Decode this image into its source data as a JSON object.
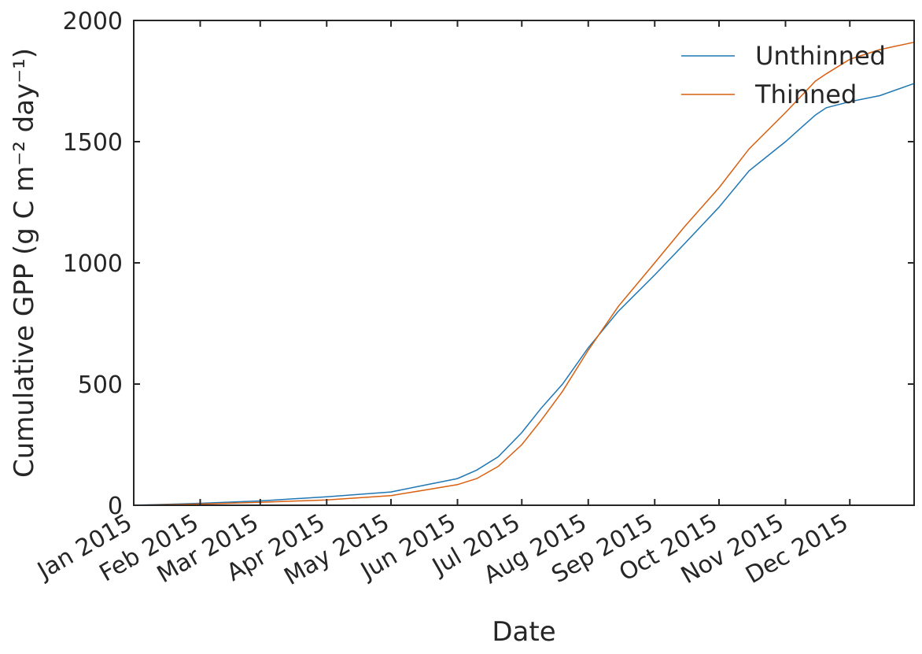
{
  "chart_data": {
    "type": "line",
    "title": "",
    "xlabel": "Date",
    "ylabel": "Cumulative GPP (g C m⁻² day⁻¹)",
    "ylim": [
      0,
      2000
    ],
    "xlim": [
      "2015-01-01",
      "2015-12-31"
    ],
    "y_ticks": [
      "0",
      "500",
      "1000",
      "1500",
      "2000"
    ],
    "x_ticks": [
      {
        "date": "2015-01-01",
        "label": "Jan 2015"
      },
      {
        "date": "2015-02-01",
        "label": "Feb 2015"
      },
      {
        "date": "2015-03-01",
        "label": "Mar 2015"
      },
      {
        "date": "2015-04-01",
        "label": "Apr 2015"
      },
      {
        "date": "2015-05-01",
        "label": "May 2015"
      },
      {
        "date": "2015-06-01",
        "label": "Jun 2015"
      },
      {
        "date": "2015-07-01",
        "label": "Jul 2015"
      },
      {
        "date": "2015-08-01",
        "label": "Aug 2015"
      },
      {
        "date": "2015-09-01",
        "label": "Sep 2015"
      },
      {
        "date": "2015-10-01",
        "label": "Oct 2015"
      },
      {
        "date": "2015-11-01",
        "label": "Nov 2015"
      },
      {
        "date": "2015-12-01",
        "label": "Dec 2015"
      }
    ],
    "grid": false,
    "legend_position": "top-right",
    "series": [
      {
        "name": "Unthinned",
        "color": "#1f77b4",
        "points": [
          [
            "2015-01-01",
            0
          ],
          [
            "2015-02-01",
            8
          ],
          [
            "2015-03-01",
            18
          ],
          [
            "2015-04-01",
            35
          ],
          [
            "2015-05-01",
            55
          ],
          [
            "2015-05-15",
            80
          ],
          [
            "2015-06-01",
            110
          ],
          [
            "2015-06-10",
            145
          ],
          [
            "2015-06-20",
            200
          ],
          [
            "2015-07-01",
            300
          ],
          [
            "2015-07-10",
            400
          ],
          [
            "2015-07-20",
            500
          ],
          [
            "2015-08-01",
            650
          ],
          [
            "2015-08-15",
            800
          ],
          [
            "2015-09-01",
            950
          ],
          [
            "2015-09-15",
            1080
          ],
          [
            "2015-10-01",
            1230
          ],
          [
            "2015-10-15",
            1380
          ],
          [
            "2015-11-01",
            1500
          ],
          [
            "2015-11-15",
            1610
          ],
          [
            "2015-11-20",
            1640
          ],
          [
            "2015-12-01",
            1665
          ],
          [
            "2015-12-15",
            1690
          ],
          [
            "2015-12-31",
            1740
          ]
        ]
      },
      {
        "name": "Thinned",
        "color": "#d95f0e",
        "points": [
          [
            "2015-01-01",
            0
          ],
          [
            "2015-02-01",
            5
          ],
          [
            "2015-03-01",
            12
          ],
          [
            "2015-04-01",
            22
          ],
          [
            "2015-05-01",
            40
          ],
          [
            "2015-05-15",
            60
          ],
          [
            "2015-06-01",
            85
          ],
          [
            "2015-06-10",
            110
          ],
          [
            "2015-06-20",
            160
          ],
          [
            "2015-07-01",
            250
          ],
          [
            "2015-07-10",
            350
          ],
          [
            "2015-07-20",
            470
          ],
          [
            "2015-08-01",
            640
          ],
          [
            "2015-08-15",
            820
          ],
          [
            "2015-09-01",
            1000
          ],
          [
            "2015-09-15",
            1150
          ],
          [
            "2015-10-01",
            1310
          ],
          [
            "2015-10-15",
            1470
          ],
          [
            "2015-11-01",
            1620
          ],
          [
            "2015-11-15",
            1750
          ],
          [
            "2015-11-20",
            1780
          ],
          [
            "2015-12-01",
            1840
          ],
          [
            "2015-12-15",
            1880
          ],
          [
            "2015-12-31",
            1910
          ]
        ]
      }
    ]
  }
}
